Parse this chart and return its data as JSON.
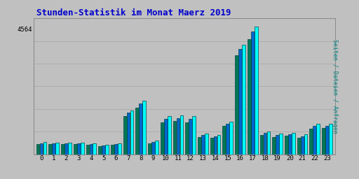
{
  "title": "Stunden-Statistik im Monat Maerz 2019",
  "title_color": "#0000cc",
  "title_fontsize": 9,
  "background_color": "#c0c0c0",
  "plot_bg_color": "#c0c0c0",
  "ylabel_right": "Seiten / Dateien / Anfragen",
  "ylabel_right_color": "#008080",
  "hours": [
    0,
    1,
    2,
    3,
    4,
    5,
    6,
    7,
    8,
    9,
    10,
    11,
    12,
    13,
    14,
    15,
    16,
    17,
    18,
    19,
    20,
    21,
    22,
    23
  ],
  "seiten": [
    340,
    330,
    330,
    330,
    310,
    260,
    310,
    1200,
    1460,
    370,
    1040,
    1060,
    1040,
    575,
    540,
    890,
    2970,
    3470,
    620,
    570,
    595,
    545,
    830,
    840
  ],
  "dateien": [
    310,
    300,
    300,
    300,
    285,
    240,
    285,
    1130,
    1380,
    340,
    960,
    995,
    960,
    525,
    495,
    830,
    2870,
    3340,
    580,
    525,
    550,
    500,
    775,
    775
  ],
  "anfragen": [
    285,
    275,
    275,
    275,
    260,
    220,
    260,
    1050,
    1280,
    310,
    875,
    910,
    875,
    480,
    455,
    770,
    2700,
    3140,
    530,
    480,
    505,
    455,
    710,
    715
  ],
  "seiten_color": "#00ffff",
  "dateien_color": "#0066cc",
  "anfragen_color": "#007755",
  "border_color": "#004444",
  "ylim": [
    0,
    3700
  ],
  "ytick_pos": 3400,
  "ytick_label": "4564",
  "grid_color": "#aaaaaa",
  "n_gridlines": 7
}
